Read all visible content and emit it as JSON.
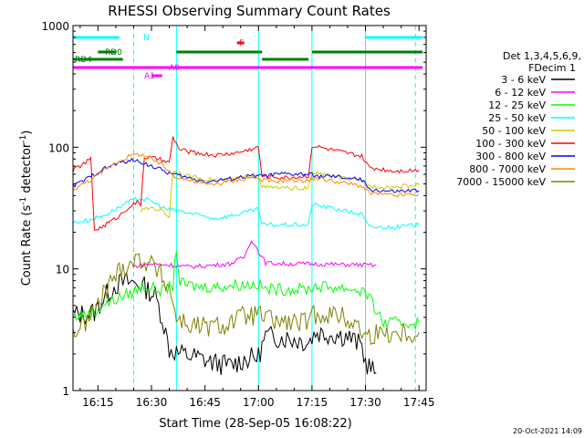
{
  "chart_data": {
    "type": "line",
    "title": "RHESSI Observing Summary Count Rates",
    "xlabel": "Start Time (28-Sep-05 16:08:22)",
    "ylabel_parts": [
      "Count Rate (s",
      "-1",
      " detector",
      "-1",
      ")"
    ],
    "yscale": "log",
    "ylim": [
      1,
      1000
    ],
    "xlim": [
      "16:08",
      "17:47"
    ],
    "x_ticks": [
      "16:15",
      "16:30",
      "16:45",
      "17:00",
      "17:15",
      "17:30",
      "17:45"
    ],
    "y_ticks": [
      "1",
      "10",
      "100",
      "1000"
    ],
    "footer_date": "20-Oct-2021 14:09",
    "legend_header": [
      "Det 1,3,4,5,6,9,",
      "FDecim 1"
    ],
    "series": [
      {
        "name": "3 - 6 keV",
        "color": "#000000",
        "points": [
          [
            "16:08",
            4.2
          ],
          [
            "16:12",
            4.3
          ],
          [
            "16:14",
            4.4
          ],
          [
            "16:17",
            6.0
          ],
          [
            "16:20",
            7.4
          ],
          [
            "16:23",
            7.8
          ],
          [
            "16:27",
            7.5
          ],
          [
            "16:31",
            6.0
          ],
          [
            "16:33",
            4.0
          ],
          [
            "16:35",
            2.2
          ],
          [
            "16:38",
            2.0
          ],
          [
            "16:42",
            1.9
          ],
          [
            "16:47",
            1.7
          ],
          [
            "16:52",
            1.6
          ],
          [
            "16:56",
            1.8
          ],
          [
            "17:00",
            1.9
          ],
          [
            "17:02",
            2.8
          ],
          [
            "17:08",
            2.7
          ],
          [
            "17:14",
            2.5
          ],
          [
            "17:16",
            3.0
          ],
          [
            "17:25",
            2.8
          ],
          [
            "17:29",
            2.3
          ],
          [
            "17:30",
            1.7
          ],
          [
            "17:33",
            1.4
          ]
        ]
      },
      {
        "name": "6 - 12 keV",
        "color": "#ff00ff",
        "points": [
          [
            "16:25",
            10.5
          ],
          [
            "16:30",
            11.0
          ],
          [
            "16:35",
            10.8
          ],
          [
            "16:40",
            10.4
          ],
          [
            "16:45",
            10.6
          ],
          [
            "16:52",
            11.0
          ],
          [
            "16:56",
            12.5
          ],
          [
            "16:58",
            17.5
          ],
          [
            "17:00",
            14.0
          ],
          [
            "17:02",
            11.2
          ],
          [
            "17:08",
            11.0
          ],
          [
            "17:14",
            11.0
          ],
          [
            "17:20",
            10.9
          ],
          [
            "17:28",
            10.8
          ],
          [
            "17:33",
            10.7
          ]
        ]
      },
      {
        "name": "12 - 25 keV",
        "color": "#00ff00",
        "points": [
          [
            "16:08",
            4.0
          ],
          [
            "16:11",
            4.2
          ],
          [
            "16:14",
            4.3
          ],
          [
            "16:16",
            5.0
          ],
          [
            "16:20",
            5.6
          ],
          [
            "16:24",
            6.3
          ],
          [
            "16:28",
            7.2
          ],
          [
            "16:30",
            7.0
          ],
          [
            "16:33",
            6.6
          ],
          [
            "16:36",
            7.3
          ],
          [
            "16:37",
            15.0
          ],
          [
            "16:38",
            7.6
          ],
          [
            "16:42",
            7.2
          ],
          [
            "16:48",
            7.1
          ],
          [
            "16:54",
            7.4
          ],
          [
            "17:00",
            7.5
          ],
          [
            "17:02",
            6.8
          ],
          [
            "17:08",
            6.8
          ],
          [
            "17:14",
            6.8
          ],
          [
            "17:16",
            7.2
          ],
          [
            "17:24",
            7.0
          ],
          [
            "17:30",
            6.5
          ],
          [
            "17:35",
            3.6
          ],
          [
            "17:45",
            3.6
          ]
        ]
      },
      {
        "name": "25 - 50 keV",
        "color": "#00ffff",
        "points": [
          [
            "16:08",
            24.0
          ],
          [
            "16:12",
            25.0
          ],
          [
            "16:16",
            27.0
          ],
          [
            "16:20",
            31.0
          ],
          [
            "16:24",
            36.0
          ],
          [
            "16:27",
            38.0
          ],
          [
            "16:30",
            36.0
          ],
          [
            "16:34",
            31.0
          ],
          [
            "16:38",
            30.0
          ],
          [
            "16:42",
            28.0
          ],
          [
            "16:48",
            26.0
          ],
          [
            "16:54",
            28.0
          ],
          [
            "17:00",
            31.0
          ],
          [
            "17:01",
            23.0
          ],
          [
            "17:08",
            23.0
          ],
          [
            "17:14",
            23.0
          ],
          [
            "17:15",
            34.0
          ],
          [
            "17:22",
            31.0
          ],
          [
            "17:29",
            28.0
          ],
          [
            "17:31",
            22.0
          ],
          [
            "17:38",
            22.0
          ],
          [
            "17:45",
            23.0
          ]
        ]
      },
      {
        "name": "50 - 100 keV",
        "color": "#cccc00",
        "points": [
          [
            "16:27",
            30.0
          ],
          [
            "16:30",
            32.0
          ],
          [
            "16:33",
            30.0
          ],
          [
            "16:35",
            27.0
          ],
          [
            "16:36",
            64.0
          ],
          [
            "16:40",
            58.0
          ],
          [
            "16:45",
            55.0
          ],
          [
            "16:50",
            53.0
          ],
          [
            "16:55",
            56.0
          ],
          [
            "17:00",
            60.0
          ],
          [
            "17:01",
            47.0
          ],
          [
            "17:08",
            46.0
          ],
          [
            "17:14",
            46.0
          ],
          [
            "17:15",
            62.0
          ],
          [
            "17:22",
            57.0
          ],
          [
            "17:29",
            52.0
          ],
          [
            "17:31",
            48.0
          ],
          [
            "17:38",
            47.0
          ],
          [
            "17:45",
            49.0
          ]
        ]
      },
      {
        "name": "100 - 300 keV",
        "color": "#ff0000",
        "points": [
          [
            "16:08",
            65.0
          ],
          [
            "16:11",
            73.0
          ],
          [
            "16:13",
            80.0
          ],
          [
            "16:14",
            21.0
          ],
          [
            "16:16",
            22.0
          ],
          [
            "16:18",
            24.0
          ],
          [
            "16:20",
            26.0
          ],
          [
            "16:22",
            29.0
          ],
          [
            "16:24",
            33.0
          ],
          [
            "16:26",
            35.0
          ],
          [
            "16:27",
            34.0
          ],
          [
            "16:28",
            83.0
          ],
          [
            "16:32",
            80.0
          ],
          [
            "16:35",
            74.0
          ],
          [
            "16:36",
            120.0
          ],
          [
            "16:38",
            95.0
          ],
          [
            "16:42",
            90.0
          ],
          [
            "16:48",
            86.0
          ],
          [
            "16:54",
            90.0
          ],
          [
            "17:00",
            100.0
          ],
          [
            "17:01",
            58.0
          ],
          [
            "17:08",
            56.0
          ],
          [
            "17:14",
            58.0
          ],
          [
            "17:15",
            103.0
          ],
          [
            "17:22",
            93.0
          ],
          [
            "17:29",
            84.0
          ],
          [
            "17:31",
            68.0
          ],
          [
            "17:38",
            64.0
          ],
          [
            "17:45",
            65.0
          ]
        ]
      },
      {
        "name": "300 - 800 keV",
        "color": "#0000ff",
        "points": [
          [
            "16:08",
            48.0
          ],
          [
            "16:12",
            55.0
          ],
          [
            "16:16",
            65.0
          ],
          [
            "16:20",
            73.0
          ],
          [
            "16:24",
            78.0
          ],
          [
            "16:27",
            76.0
          ],
          [
            "16:30",
            70.0
          ],
          [
            "16:34",
            63.0
          ],
          [
            "16:36",
            60.0
          ],
          [
            "16:40",
            56.0
          ],
          [
            "16:46",
            52.0
          ],
          [
            "16:52",
            55.0
          ],
          [
            "16:58",
            58.0
          ],
          [
            "17:01",
            58.0
          ],
          [
            "17:06",
            60.0
          ],
          [
            "17:14",
            60.0
          ],
          [
            "17:16",
            58.0
          ],
          [
            "17:22",
            57.0
          ],
          [
            "17:29",
            54.0
          ],
          [
            "17:31",
            45.0
          ],
          [
            "17:38",
            43.0
          ],
          [
            "17:45",
            44.0
          ]
        ]
      },
      {
        "name": "800 - 7000 keV",
        "color": "#ff8800",
        "points": [
          [
            "16:08",
            45.0
          ],
          [
            "16:12",
            52.0
          ],
          [
            "16:16",
            62.0
          ],
          [
            "16:20",
            75.0
          ],
          [
            "16:24",
            85.0
          ],
          [
            "16:27",
            88.0
          ],
          [
            "16:30",
            80.0
          ],
          [
            "16:34",
            68.0
          ],
          [
            "16:36",
            59.0
          ],
          [
            "16:40",
            54.0
          ],
          [
            "16:46",
            49.0
          ],
          [
            "16:52",
            52.0
          ],
          [
            "16:58",
            57.0
          ],
          [
            "17:00",
            55.0
          ],
          [
            "17:04",
            52.0
          ],
          [
            "17:08",
            54.0
          ],
          [
            "17:14",
            53.0
          ],
          [
            "17:16",
            56.0
          ],
          [
            "17:22",
            52.0
          ],
          [
            "17:29",
            48.0
          ],
          [
            "17:31",
            42.0
          ],
          [
            "17:38",
            40.0
          ],
          [
            "17:45",
            41.0
          ]
        ]
      },
      {
        "name": "7000 - 15000 keV",
        "color": "#808000",
        "points": [
          [
            "16:08",
            3.0
          ],
          [
            "16:11",
            3.5
          ],
          [
            "16:14",
            4.5
          ],
          [
            "16:17",
            6.5
          ],
          [
            "16:20",
            9.0
          ],
          [
            "16:23",
            11.0
          ],
          [
            "16:26",
            12.0
          ],
          [
            "16:29",
            11.5
          ],
          [
            "16:32",
            9.5
          ],
          [
            "16:35",
            7.0
          ],
          [
            "16:37",
            4.0
          ],
          [
            "16:40",
            3.5
          ],
          [
            "16:45",
            3.3
          ],
          [
            "16:50",
            3.4
          ],
          [
            "16:55",
            4.0
          ],
          [
            "17:00",
            4.2
          ],
          [
            "17:03",
            3.8
          ],
          [
            "17:08",
            3.6
          ],
          [
            "17:14",
            3.6
          ],
          [
            "17:16",
            4.3
          ],
          [
            "17:22",
            4.2
          ],
          [
            "17:27",
            3.6
          ],
          [
            "17:30",
            2.8
          ],
          [
            "17:35",
            3.0
          ],
          [
            "17:45",
            3.0
          ]
        ]
      }
    ],
    "status_bars": [
      {
        "label": "N",
        "color": "#00ffff",
        "segments": [
          [
            "16:08",
            "16:21"
          ],
          [
            "17:30",
            "17:46"
          ]
        ]
      },
      {
        "label": "RD0",
        "color": "#008000",
        "segments": [
          [
            "16:15",
            "16:20"
          ],
          [
            "16:37",
            "17:01"
          ],
          [
            "17:15",
            "17:46"
          ]
        ]
      },
      {
        "label": "RD4",
        "color": "#008000",
        "segments": [
          [
            "16:08",
            "16:22"
          ],
          [
            "17:01",
            "17:14"
          ]
        ]
      },
      {
        "label": "F",
        "color": "#ff0000",
        "segments": [
          [
            "16:54",
            "16:56"
          ]
        ]
      },
      {
        "label": "A0",
        "color": "#ff00ff",
        "segments": [
          [
            "16:08",
            "17:46"
          ]
        ]
      },
      {
        "label": "A1",
        "color": "#ff00ff",
        "segments": [
          [
            "16:30",
            "16:33"
          ]
        ]
      }
    ],
    "time_markers": {
      "solid": [
        "16:08",
        "16:37",
        "17:00",
        "17:15",
        "17:30"
      ],
      "dashed": [
        "16:25",
        "17:44"
      ]
    }
  }
}
